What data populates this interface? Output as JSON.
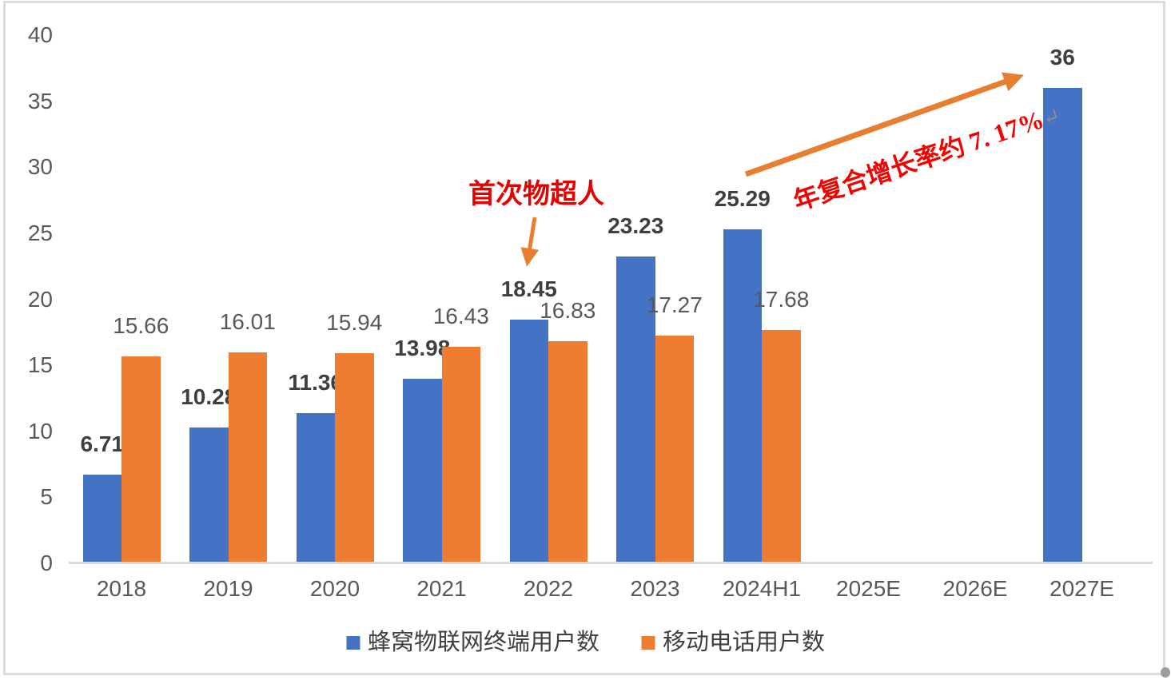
{
  "chart_data": {
    "type": "bar",
    "title": "",
    "xlabel": "",
    "ylabel": "",
    "categories": [
      "2018",
      "2019",
      "2020",
      "2021",
      "2022",
      "2023",
      "2024H1",
      "2025E",
      "2026E",
      "2027E"
    ],
    "series": [
      {
        "name": "蜂窝物联网终端用户数",
        "color": "#4472C4",
        "values": [
          6.71,
          10.28,
          11.36,
          13.98,
          18.45,
          23.23,
          25.29,
          null,
          null,
          36
        ]
      },
      {
        "name": "移动电话用户数",
        "color": "#ED7D31",
        "values": [
          15.66,
          16.01,
          15.94,
          16.43,
          16.83,
          17.27,
          17.68,
          null,
          null,
          null
        ]
      }
    ],
    "ylim": [
      0,
      40
    ],
    "yticks": [
      0,
      5,
      10,
      15,
      20,
      25,
      30,
      35,
      40
    ],
    "grid": false,
    "legend_position": "bottom"
  },
  "annotations": {
    "first_things_exceed_people": "首次物超人",
    "cagr_text": "年复合增长率约 7. 17%",
    "cagr_return_mark": "↵"
  },
  "colors": {
    "series_blue": "#4472C4",
    "series_orange": "#ED7D31",
    "annotation_red": "#E60000",
    "cagr_red": "#F50000",
    "arrow_orange": "#E87E31",
    "axis_text": "#595959",
    "blue_label_text": "#3F3F3F",
    "axis_line": "#D9D9D9",
    "frame_border": "#DCDCDC"
  }
}
